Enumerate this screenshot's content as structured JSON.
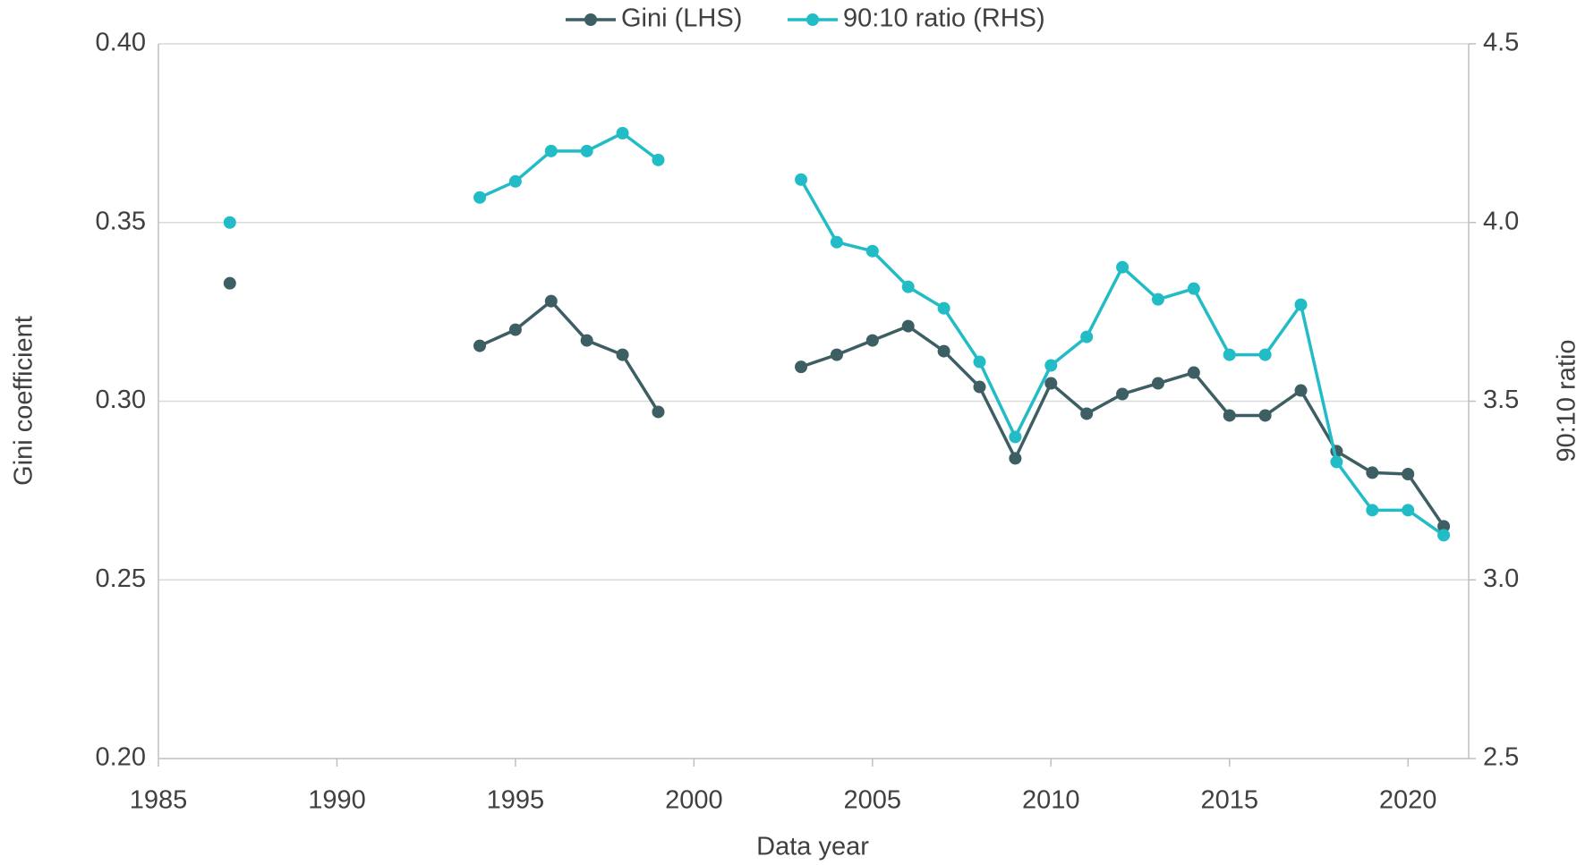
{
  "chart_data": {
    "type": "line",
    "x_label": "Data year",
    "y_label": "Gini coefficient",
    "y2_label": "90:10 ratio",
    "x": [
      1987,
      1988,
      1989,
      1990,
      1991,
      1992,
      1993,
      1994,
      1995,
      1996,
      1997,
      1998,
      1999,
      2000,
      2001,
      2002,
      2003,
      2004,
      2005,
      2006,
      2007,
      2008,
      2009,
      2010,
      2011,
      2012,
      2013,
      2014,
      2015,
      2016,
      2017,
      2018,
      2019,
      2020,
      2021
    ],
    "series": [
      {
        "name": "Gini (LHS)",
        "color": "#3d5f63",
        "axis": "y",
        "values": [
          0.333,
          null,
          null,
          null,
          null,
          null,
          null,
          0.3155,
          0.32,
          0.328,
          0.317,
          0.313,
          0.297,
          null,
          null,
          null,
          0.3096,
          0.313,
          0.317,
          0.321,
          0.314,
          0.304,
          0.284,
          0.305,
          0.2965,
          0.302,
          0.305,
          0.308,
          0.296,
          0.296,
          0.303,
          0.286,
          0.28,
          0.2796,
          0.265
        ]
      },
      {
        "name": "90:10 ratio (RHS)",
        "color": "#22bcc6",
        "axis": "y2",
        "values": [
          4.0,
          null,
          null,
          null,
          null,
          null,
          null,
          4.07,
          4.115,
          4.2,
          4.2,
          4.25,
          4.175,
          null,
          null,
          null,
          4.12,
          3.945,
          3.92,
          3.82,
          3.76,
          3.61,
          3.4,
          3.6,
          3.68,
          3.875,
          3.785,
          3.815,
          3.63,
          3.63,
          3.77,
          3.33,
          3.195,
          3.195,
          3.125
        ]
      }
    ],
    "xlim": [
      1985,
      2021.7
    ],
    "xticks": [
      1985,
      1990,
      1995,
      2000,
      2005,
      2010,
      2015,
      2020
    ],
    "ylim": [
      0.2,
      0.4
    ],
    "yticks": [
      {
        "value": 0.2,
        "label": "0.20"
      },
      0.25,
      {
        "value": 0.3,
        "label": "0.30"
      },
      0.35,
      {
        "value": 0.4,
        "label": "0.40"
      }
    ],
    "y2lim": [
      2.5,
      4.5
    ],
    "y2ticks": [
      2.5,
      {
        "value": 3,
        "label": "3.0"
      },
      3.5,
      {
        "value": 4,
        "label": "4.0"
      },
      4.5
    ],
    "grid": true,
    "legend": "top"
  }
}
